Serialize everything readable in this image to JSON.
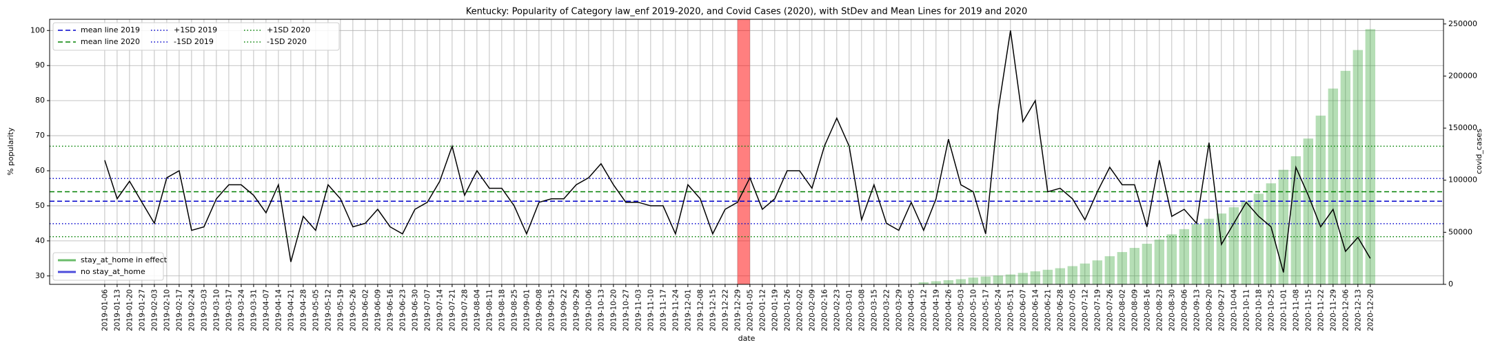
{
  "chart_data": {
    "type": "line",
    "title": "Kentucky: Popularity of Category law_enf 2019-2020, and Covid Cases (2020), with StDev and Mean Lines for 2019 and 2020",
    "xlabel": "date",
    "ylabel": "% popularity",
    "y2label": "covid_cases",
    "categories": [
      "2019-01-06",
      "2019-01-13",
      "2019-01-20",
      "2019-01-27",
      "2019-02-03",
      "2019-02-10",
      "2019-02-17",
      "2019-02-24",
      "2019-03-03",
      "2019-03-10",
      "2019-03-17",
      "2019-03-24",
      "2019-03-31",
      "2019-04-07",
      "2019-04-14",
      "2019-04-21",
      "2019-04-28",
      "2019-05-05",
      "2019-05-12",
      "2019-05-19",
      "2019-05-26",
      "2019-06-02",
      "2019-06-09",
      "2019-06-16",
      "2019-06-23",
      "2019-06-30",
      "2019-07-07",
      "2019-07-14",
      "2019-07-21",
      "2019-07-28",
      "2019-08-04",
      "2019-08-11",
      "2019-08-18",
      "2019-08-25",
      "2019-09-01",
      "2019-09-08",
      "2019-09-15",
      "2019-09-22",
      "2019-09-29",
      "2019-10-06",
      "2019-10-13",
      "2019-10-20",
      "2019-10-27",
      "2019-11-03",
      "2019-11-10",
      "2019-11-17",
      "2019-11-24",
      "2019-12-01",
      "2019-12-08",
      "2019-12-15",
      "2019-12-22",
      "2019-12-29",
      "2020-01-05",
      "2020-01-12",
      "2020-01-19",
      "2020-01-26",
      "2020-02-02",
      "2020-02-09",
      "2020-02-16",
      "2020-02-23",
      "2020-03-01",
      "2020-03-08",
      "2020-03-15",
      "2020-03-22",
      "2020-03-29",
      "2020-04-05",
      "2020-04-12",
      "2020-04-19",
      "2020-04-26",
      "2020-05-03",
      "2020-05-10",
      "2020-05-17",
      "2020-05-24",
      "2020-05-31",
      "2020-06-07",
      "2020-06-14",
      "2020-06-21",
      "2020-06-28",
      "2020-07-05",
      "2020-07-12",
      "2020-07-19",
      "2020-07-26",
      "2020-08-02",
      "2020-08-09",
      "2020-08-16",
      "2020-08-23",
      "2020-08-30",
      "2020-09-06",
      "2020-09-13",
      "2020-09-20",
      "2020-09-27",
      "2020-10-04",
      "2020-10-11",
      "2020-10-18",
      "2020-10-25",
      "2020-11-01",
      "2020-11-08",
      "2020-11-15",
      "2020-11-22",
      "2020-11-29",
      "2020-12-06",
      "2020-12-13",
      "2020-12-20"
    ],
    "series": [
      {
        "type": "line",
        "color": "#000000",
        "values": [
          63,
          52,
          57,
          51,
          45,
          58,
          60,
          43,
          44,
          52,
          56,
          56,
          53,
          48,
          56,
          34,
          47,
          43,
          56,
          52,
          44,
          45,
          49,
          44,
          42,
          49,
          51,
          57,
          67,
          53,
          60,
          55,
          55,
          50,
          42,
          51,
          52,
          52,
          56,
          58,
          62,
          56,
          51,
          51,
          50,
          50,
          42,
          56,
          52,
          42,
          49,
          51,
          58,
          49,
          52,
          60,
          60,
          55,
          67,
          75,
          67,
          46,
          56,
          45,
          43,
          51,
          43,
          52,
          69,
          56,
          54,
          42,
          77,
          100,
          74,
          80,
          54,
          55,
          52,
          46,
          54,
          61,
          56,
          56,
          44,
          63,
          47,
          49,
          45,
          68,
          39,
          45,
          51,
          47,
          44,
          31,
          61,
          53,
          44,
          49,
          37,
          41,
          35
        ]
      },
      {
        "type": "bar",
        "axis": "y2",
        "color": "#2ca02c",
        "opacity": 0.35,
        "values": [
          null,
          null,
          null,
          null,
          null,
          null,
          null,
          null,
          null,
          null,
          null,
          null,
          null,
          null,
          null,
          null,
          null,
          null,
          null,
          null,
          null,
          null,
          null,
          null,
          null,
          null,
          null,
          null,
          null,
          null,
          null,
          null,
          null,
          null,
          null,
          null,
          null,
          null,
          null,
          null,
          null,
          null,
          null,
          null,
          null,
          null,
          null,
          null,
          null,
          null,
          null,
          null,
          null,
          null,
          null,
          null,
          null,
          null,
          null,
          null,
          null,
          null,
          null,
          null,
          null,
          null,
          2000,
          3000,
          4000,
          5000,
          6500,
          7500,
          8500,
          9500,
          11000,
          12500,
          14000,
          15500,
          17500,
          20000,
          23000,
          27000,
          31000,
          35000,
          39000,
          43000,
          48000,
          53000,
          58000,
          63000,
          68000,
          74000,
          80000,
          87000,
          97000,
          110000,
          123000,
          140000,
          162000,
          188000,
          205000,
          225000,
          245000
        ]
      }
    ],
    "reference_lines": [
      {
        "name": "mean line 2019",
        "value": 51.3,
        "color": "#0000cc",
        "style": "dashed"
      },
      {
        "name": "mean line 2020",
        "value": 54,
        "color": "#008000",
        "style": "dashed"
      },
      {
        "name": "+1SD 2019",
        "value": 57.8,
        "color": "#0000cc",
        "style": "dotted"
      },
      {
        "name": "-1SD 2019",
        "value": 44.9,
        "color": "#0000cc",
        "style": "dotted"
      },
      {
        "name": "+1SD 2020",
        "value": 67,
        "color": "#008000",
        "style": "dotted"
      },
      {
        "name": "-1SD 2020",
        "value": 41.2,
        "color": "#008000",
        "style": "dotted"
      }
    ],
    "highlight": {
      "start": "2019-12-29",
      "end": "2020-01-05",
      "color": "#ff0000",
      "opacity": 0.5
    },
    "legend": "upper left",
    "legend2": {
      "position": "lower left",
      "entries": [
        {
          "name": "stay_at_home in effect",
          "color": "#2ca02c"
        },
        {
          "name": "no stay_at_home",
          "color": "#0000cc"
        }
      ]
    },
    "ylim": [
      27.6,
      103.2
    ],
    "yticks": [
      30,
      40,
      50,
      60,
      70,
      80,
      90,
      100
    ],
    "y2lim": [
      0,
      254500
    ],
    "y2ticks": [
      0,
      50000,
      100000,
      150000,
      200000,
      250000
    ],
    "grid": true
  }
}
